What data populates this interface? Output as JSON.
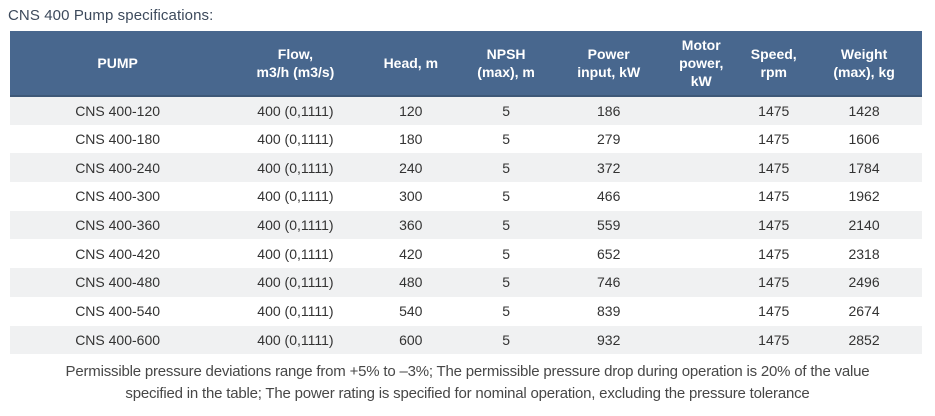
{
  "page": {
    "title": "CNS 400 Pump specifications:"
  },
  "colors": {
    "header_bg": "#48678e",
    "header_text": "#ffffff",
    "header_border_bottom": "#3e5878",
    "row_stripe": "#f0f1f2",
    "row_white": "#ffffff",
    "body_text": "#333333",
    "title_text": "#3d4a5c",
    "footer_text": "#474747"
  },
  "table": {
    "columns": [
      {
        "key": "pump",
        "label": "PUMP"
      },
      {
        "key": "flow",
        "label": "Flow,\nm3/h (m3/s)"
      },
      {
        "key": "head",
        "label": "Head, m"
      },
      {
        "key": "npsh",
        "label": "NPSH\n(max), m"
      },
      {
        "key": "power_input",
        "label": "Power\ninput, kW"
      },
      {
        "key": "motor_power",
        "label": "Motor\npower,\nkW"
      },
      {
        "key": "speed",
        "label": "Speed,\nrpm"
      },
      {
        "key": "weight",
        "label": "Weight\n(max), kg"
      }
    ],
    "rows": [
      [
        "CNS 400-120",
        "400 (0,1111)",
        "120",
        "5",
        "186",
        "",
        "1475",
        "1428"
      ],
      [
        "CNS 400-180",
        "400 (0,1111)",
        "180",
        "5",
        "279",
        "",
        "1475",
        "1606"
      ],
      [
        "CNS 400-240",
        "400 (0,1111)",
        "240",
        "5",
        "372",
        "",
        "1475",
        "1784"
      ],
      [
        "CNS 400-300",
        "400 (0,1111)",
        "300",
        "5",
        "466",
        "",
        "1475",
        "1962"
      ],
      [
        "CNS 400-360",
        "400 (0,1111)",
        "360",
        "5",
        "559",
        "",
        "1475",
        "2140"
      ],
      [
        "CNS 400-420",
        "400 (0,1111)",
        "420",
        "5",
        "652",
        "",
        "1475",
        "2318"
      ],
      [
        "CNS 400-480",
        "400 (0,1111)",
        "480",
        "5",
        "746",
        "",
        "1475",
        "2496"
      ],
      [
        "CNS 400-540",
        "400 (0,1111)",
        "540",
        "5",
        "839",
        "",
        "1475",
        "2674"
      ],
      [
        "CNS 400-600",
        "400 (0,1111)",
        "600",
        "5",
        "932",
        "",
        "1475",
        "2852"
      ]
    ]
  },
  "footer": {
    "line1": "Permissible pressure deviations range from +5% to –3%; The permissible pressure drop during operation is 20% of the value",
    "line2": "specified in the table; The power rating is specified for nominal operation, excluding the pressure tolerance",
    "full_text": "Permissible pressure deviations range from +5% to –3%; The permissible pressure drop during operation is 20% of the value specified in the table; The power rating is specified for nominal operation, excluding the pressure tolerance"
  }
}
